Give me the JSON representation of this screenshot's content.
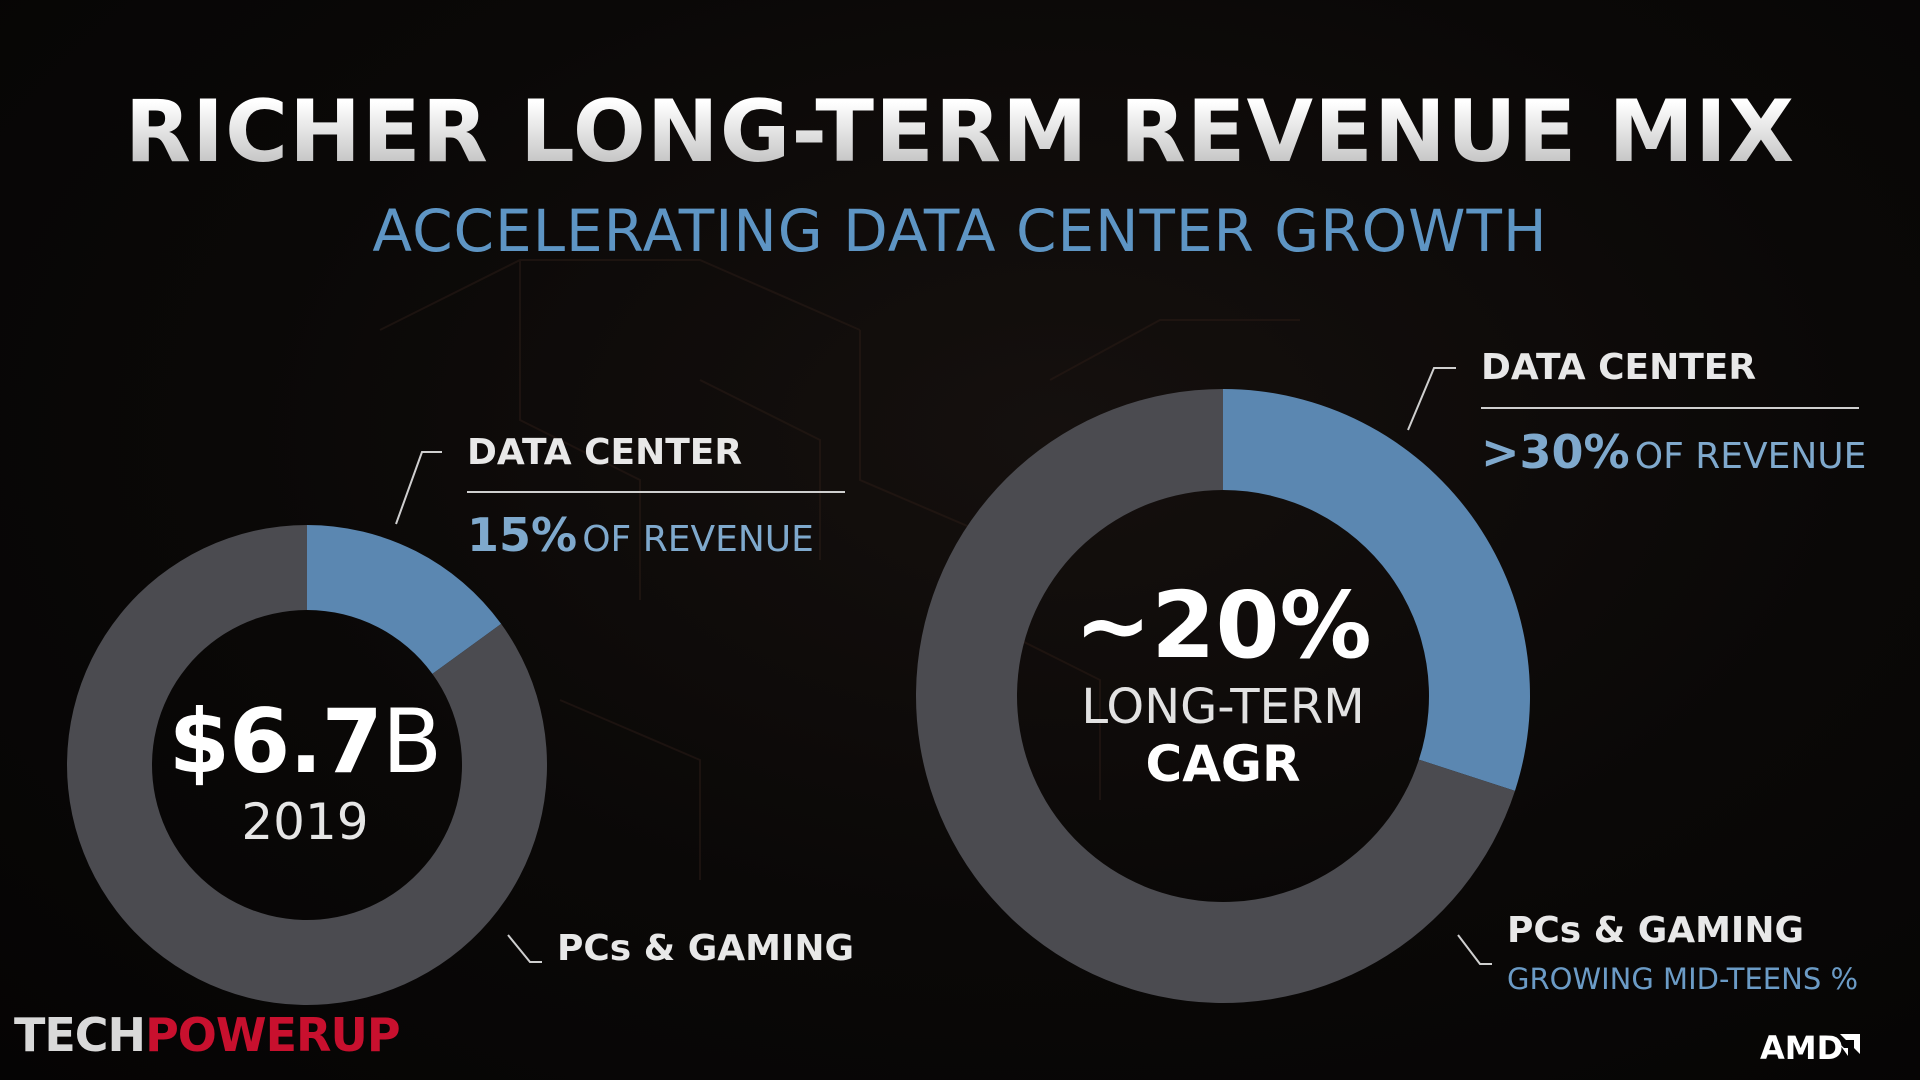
{
  "title": "RICHER LONG-TERM REVENUE MIX",
  "subtitle": "ACCELERATING DATA CENTER GROWTH",
  "chart_data": [
    {
      "type": "pie",
      "center_text": {
        "amount": "$6.7",
        "amount_unit": "B",
        "year": "2019"
      },
      "slices": [
        {
          "name": "DATA CENTER",
          "value": 15,
          "color": "#5b87b1"
        },
        {
          "name": "PCs & GAMING",
          "value": 85,
          "color": "#4b4b50"
        }
      ],
      "labels": {
        "data_center": {
          "title": "DATA CENTER",
          "pct": "15%",
          "suffix": "OF REVENUE"
        },
        "pcs_gaming": {
          "title": "PCs & GAMING"
        }
      }
    },
    {
      "type": "pie",
      "center_text": {
        "value": "~20%",
        "line2": "LONG-TERM",
        "line3": "CAGR"
      },
      "slices": [
        {
          "name": "DATA CENTER",
          "value": 30,
          "color": "#5b87b1"
        },
        {
          "name": "PCs & GAMING",
          "value": 70,
          "color": "#4b4b50"
        }
      ],
      "labels": {
        "data_center": {
          "title": "DATA CENTER",
          "pct": ">30%",
          "suffix": "OF REVENUE"
        },
        "pcs_gaming": {
          "title": "PCs & GAMING",
          "subtitle": "GROWING MID-TEENS %"
        }
      }
    }
  ],
  "watermark": {
    "part1": "TECH",
    "part2": "POWERUP"
  },
  "brand": "AMD",
  "colors": {
    "accent_blue": "#5e95c4",
    "ring_grey": "#4b4b50",
    "slice_blue": "#5b87b1"
  }
}
